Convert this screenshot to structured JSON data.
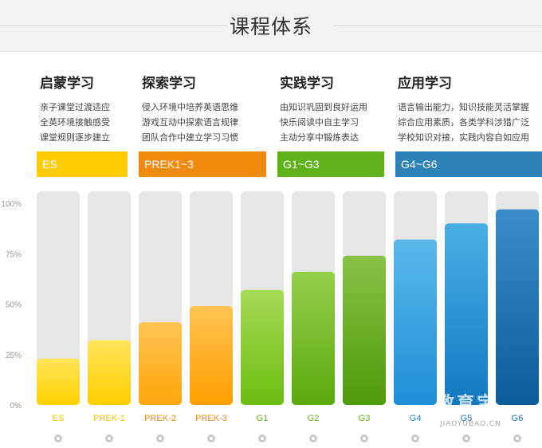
{
  "header": {
    "title": "课程体系"
  },
  "stages": [
    {
      "title": "启蒙学习",
      "desc": [
        "亲子课堂过渡适应",
        "全英环境接触感受",
        "课堂规则逐步建立"
      ],
      "band": "ES",
      "color": "#ffcc00"
    },
    {
      "title": "探索学习",
      "desc": [
        "侵入环境中培养英语思维",
        "游戏互动中探索语言规律",
        "团队合作中建立学习习惯"
      ],
      "band": "PREK1~3",
      "color": "#f08a0d"
    },
    {
      "title": "实践学习",
      "desc": [
        "由知识巩固到良好运用",
        "快乐阅读中自主学习",
        "主动分享中锻炼表达"
      ],
      "band": "G1~G3",
      "color": "#5fb318"
    },
    {
      "title": "应用学习",
      "desc": [
        "语言输出能力，知识技能灵活掌握",
        "综合应用素质，各类学科涉猎广泛",
        "学校知识对接，实践内容自如应用"
      ],
      "band": "G4~G6",
      "color": "#2d82b8"
    }
  ],
  "chart_data": {
    "type": "bar",
    "categories": [
      "ES",
      "PREK-1",
      "PREK-2",
      "PREK-3",
      "G1",
      "G2",
      "G3",
      "G4",
      "G5",
      "G6"
    ],
    "values": [
      23,
      32,
      41,
      49,
      57,
      66,
      74,
      82,
      90,
      97
    ],
    "ylim": [
      0,
      100
    ],
    "yticks": [
      "0%",
      "25%",
      "50%",
      "75%",
      "100%"
    ],
    "ytick_values": [
      0,
      25,
      50,
      75,
      100
    ],
    "colors": {
      "ES": [
        "#ffe55a",
        "#ffd000"
      ],
      "PREK-1": [
        "#ffe55a",
        "#ffcd00"
      ],
      "PREK-2": [
        "#ffc452",
        "#ffa60a"
      ],
      "PREK-3": [
        "#ffc452",
        "#ff9e00"
      ],
      "G1": [
        "#a6db55",
        "#6bbd10"
      ],
      "G2": [
        "#95cf4c",
        "#5aa90c"
      ],
      "G3": [
        "#88c248",
        "#4d9a08"
      ],
      "G4": [
        "#5ab8ea",
        "#1e8fd6"
      ],
      "G5": [
        "#4aaee6",
        "#1379c0"
      ],
      "G6": [
        "#3a8ccb",
        "#0b5d98"
      ]
    },
    "label_colors": {
      "ES": "#f3c400",
      "PREK-1": "#f3c400",
      "PREK-2": "#f08a0d",
      "PREK-3": "#f08a0d",
      "G1": "#66b31a",
      "G2": "#66b31a",
      "G3": "#66b31a",
      "G4": "#2a8fd0",
      "G5": "#1f78b8",
      "G6": "#1f78b8"
    },
    "grid": false
  },
  "watermark": {
    "main": "教育宝",
    "sub": "JIAOYUBAO.CN"
  }
}
